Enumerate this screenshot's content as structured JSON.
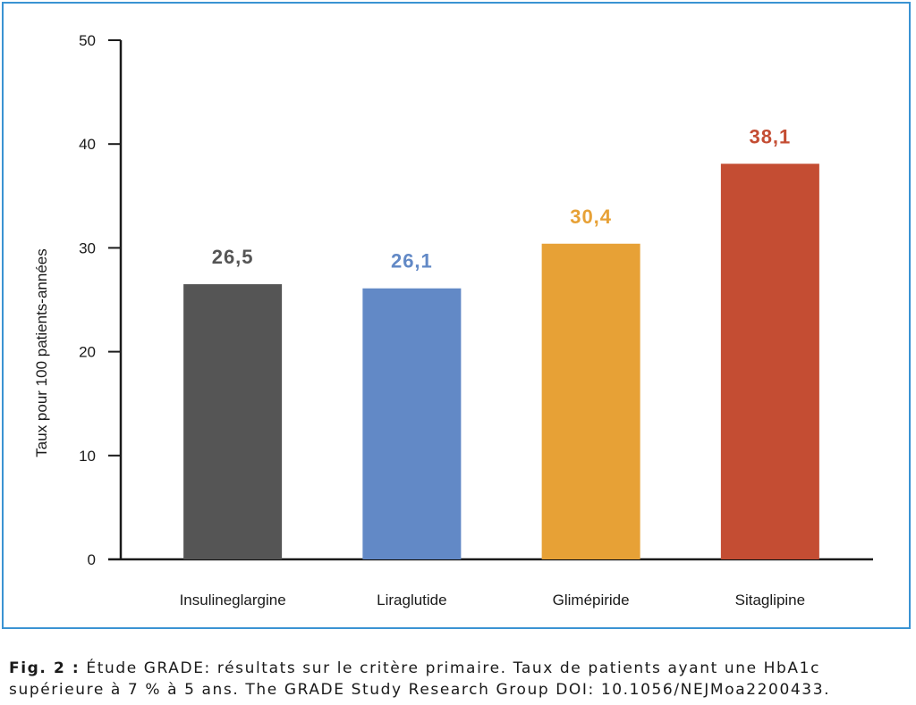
{
  "colors": {
    "frame": "#3a93d3",
    "axis": "#1a1a1a",
    "text": "#1a1a1a"
  },
  "chart_data": {
    "type": "bar",
    "categories": [
      "Insulineglargine",
      "Liraglutide",
      "Glimépiride",
      "Sitaglipine"
    ],
    "values": [
      26.5,
      26.1,
      30.4,
      38.1
    ],
    "value_labels": [
      "26,5",
      "26,1",
      "30,4",
      "38,1"
    ],
    "bar_colors": [
      "#555555",
      "#6289c6",
      "#e7a136",
      "#c44d33"
    ],
    "ylabel": "Taux pour 100 patients-années",
    "ylim": [
      0,
      50
    ],
    "yticks": [
      0,
      10,
      20,
      30,
      40,
      50
    ],
    "grid": false,
    "legend": false
  },
  "caption": {
    "label": "Fig. 2 :",
    "line1": " Étude GRADE: résultats sur le critère primaire. Taux de patients ayant une HbA1c",
    "line2": "supérieure à 7 % à 5 ans. The GRADE Study Research Group DOI: 10.1056/NEJMoa2200433."
  }
}
